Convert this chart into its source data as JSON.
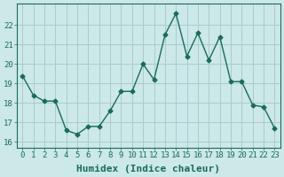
{
  "x": [
    0,
    1,
    2,
    3,
    4,
    5,
    6,
    7,
    8,
    9,
    10,
    11,
    12,
    13,
    14,
    15,
    16,
    17,
    18,
    19,
    20,
    21,
    22,
    23
  ],
  "y": [
    19.4,
    18.4,
    18.1,
    18.1,
    16.6,
    16.4,
    16.8,
    16.8,
    17.6,
    18.6,
    18.6,
    20.0,
    19.2,
    21.5,
    22.6,
    20.4,
    21.6,
    20.2,
    21.4,
    19.1,
    19.1,
    17.9,
    17.8,
    16.7
  ],
  "line_color": "#1a6b5a",
  "marker": "D",
  "markersize": 2.5,
  "linewidth": 1.0,
  "bg_color": "#cce8e8",
  "grid_color": "#aacccc",
  "xlabel": "Humidex (Indice chaleur)",
  "xlabel_fontsize": 8,
  "ylabel_ticks": [
    16,
    17,
    18,
    19,
    20,
    21,
    22
  ],
  "xlim": [
    -0.5,
    23.5
  ],
  "ylim": [
    15.7,
    23.1
  ],
  "xtick_labels": [
    "0",
    "1",
    "2",
    "3",
    "4",
    "5",
    "6",
    "7",
    "8",
    "9",
    "10",
    "11",
    "12",
    "13",
    "14",
    "15",
    "16",
    "17",
    "18",
    "19",
    "20",
    "21",
    "22",
    "23"
  ],
  "tick_fontsize": 6.5,
  "fig_bg_color": "#cce8e8"
}
